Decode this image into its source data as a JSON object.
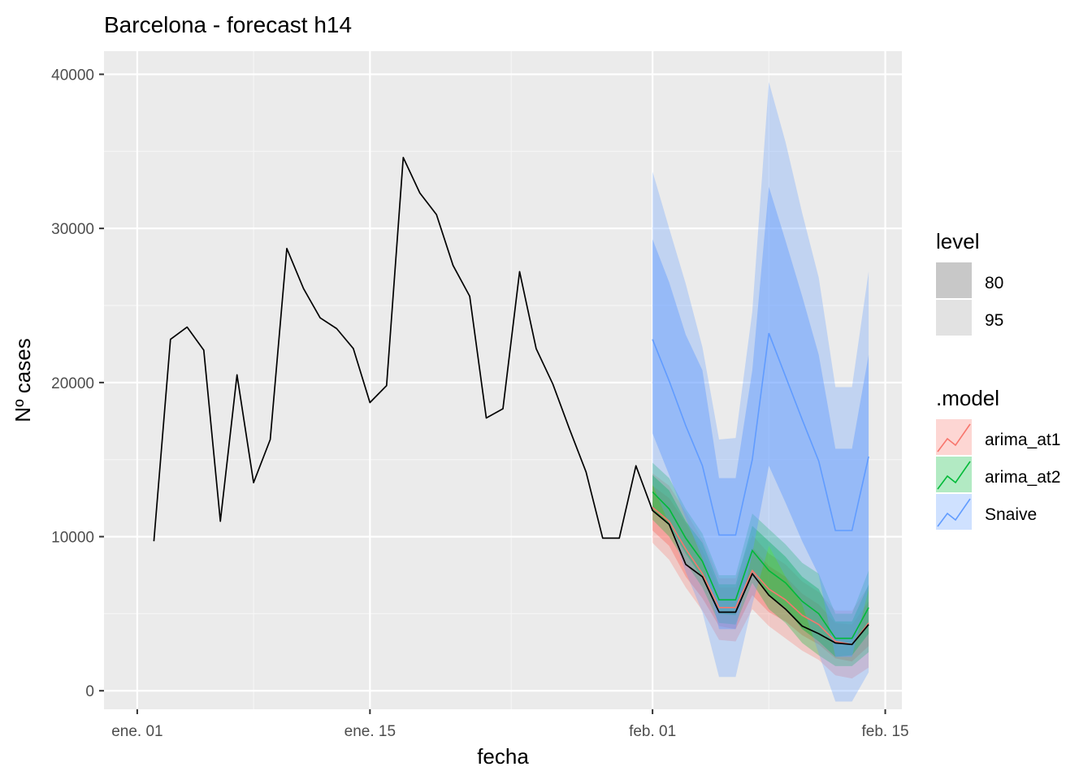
{
  "chart_data": {
    "type": "line",
    "title": "Barcelona - forecast h14",
    "xlabel": "fecha",
    "ylabel": "Nº cases",
    "xlim": [
      "2021-12-30",
      "2022-02-16"
    ],
    "ylim": [
      -1200,
      41500
    ],
    "x_ticks": [
      {
        "date": "2022-01-01",
        "label": "ene. 01"
      },
      {
        "date": "2022-01-15",
        "label": "ene. 15"
      },
      {
        "date": "2022-02-01",
        "label": "feb. 01"
      },
      {
        "date": "2022-02-15",
        "label": "feb. 15"
      }
    ],
    "y_ticks": [
      0,
      10000,
      20000,
      30000,
      40000
    ],
    "grid": true,
    "legend_position": "right",
    "actual": {
      "x": [
        "2022-01-02",
        "2022-01-03",
        "2022-01-04",
        "2022-01-05",
        "2022-01-06",
        "2022-01-07",
        "2022-01-08",
        "2022-01-09",
        "2022-01-10",
        "2022-01-11",
        "2022-01-12",
        "2022-01-13",
        "2022-01-14",
        "2022-01-15",
        "2022-01-16",
        "2022-01-17",
        "2022-01-18",
        "2022-01-19",
        "2022-01-20",
        "2022-01-21",
        "2022-01-22",
        "2022-01-23",
        "2022-01-24",
        "2022-01-25",
        "2022-01-26",
        "2022-01-27",
        "2022-01-28",
        "2022-01-29",
        "2022-01-30",
        "2022-01-31",
        "2022-02-01",
        "2022-02-02",
        "2022-02-03",
        "2022-02-04",
        "2022-02-05",
        "2022-02-06",
        "2022-02-07",
        "2022-02-08",
        "2022-02-09",
        "2022-02-10",
        "2022-02-11",
        "2022-02-12",
        "2022-02-13",
        "2022-02-14"
      ],
      "values": [
        9700,
        22800,
        23600,
        22100,
        11000,
        20500,
        13500,
        16300,
        28700,
        26100,
        24200,
        23500,
        22200,
        18700,
        19800,
        34600,
        32300,
        30900,
        27600,
        25600,
        17700,
        18300,
        27200,
        22200,
        19900,
        17000,
        14200,
        9900,
        9900,
        14600,
        11700,
        10800,
        8200,
        7400,
        5100,
        5100,
        7600,
        6200,
        5300,
        4200,
        3700,
        3100,
        3000,
        4300
      ]
    },
    "forecast_x": [
      "2022-02-01",
      "2022-02-02",
      "2022-02-03",
      "2022-02-04",
      "2022-02-05",
      "2022-02-06",
      "2022-02-07",
      "2022-02-08",
      "2022-02-09",
      "2022-02-10",
      "2022-02-11",
      "2022-02-12",
      "2022-02-13",
      "2022-02-14"
    ],
    "series": [
      {
        "name": "arima_at1",
        "color": "#F8766D",
        "mean": [
          11900,
          11000,
          9200,
          7600,
          5400,
          5400,
          7800,
          6600,
          5900,
          4900,
          4300,
          3200,
          3000,
          4400
        ],
        "lo80": [
          10400,
          9400,
          7400,
          6000,
          4200,
          4000,
          6200,
          5100,
          4500,
          3600,
          3000,
          2100,
          1900,
          2900
        ],
        "hi80": [
          13300,
          12500,
          10900,
          9100,
          6700,
          6700,
          9300,
          8100,
          7400,
          6300,
          5600,
          4400,
          4300,
          5800
        ],
        "lo95": [
          9600,
          8500,
          6700,
          5200,
          3300,
          3200,
          5300,
          4200,
          3400,
          2600,
          2000,
          1000,
          800,
          1500
        ],
        "hi95": [
          14100,
          13300,
          11600,
          9800,
          7300,
          7300,
          10100,
          8900,
          8200,
          7100,
          6400,
          5200,
          5200,
          6800
        ]
      },
      {
        "name": "arima_at2",
        "color": "#00BA38",
        "mean": [
          12900,
          11800,
          9900,
          8400,
          5900,
          5900,
          9100,
          7800,
          7000,
          5800,
          5000,
          3400,
          3400,
          5400
        ],
        "lo80": [
          11800,
          10700,
          8900,
          7300,
          5000,
          4900,
          7800,
          6200,
          5400,
          4000,
          3200,
          2200,
          2300,
          3700
        ],
        "hi80": [
          14000,
          13000,
          11000,
          9600,
          6900,
          6900,
          10700,
          9700,
          8700,
          7400,
          6600,
          4500,
          4500,
          6900
        ],
        "lo95": [
          11100,
          10000,
          8300,
          6700,
          4400,
          4300,
          7000,
          5300,
          4400,
          3100,
          2300,
          1600,
          1600,
          2500
        ],
        "hi95": [
          14800,
          13800,
          11800,
          10200,
          7500,
          7500,
          11500,
          10500,
          9500,
          8300,
          7600,
          5000,
          5000,
          7800
        ]
      },
      {
        "name": "Snaive",
        "color": "#619CFF",
        "mean": [
          22800,
          20100,
          17200,
          14600,
          10100,
          10100,
          15000,
          23200,
          20400,
          17600,
          14900,
          10400,
          10400,
          15200
        ],
        "lo80": [
          16700,
          14000,
          11200,
          8600,
          4000,
          4000,
          8900,
          14600,
          12200,
          9700,
          7500,
          2200,
          2200,
          6600
        ],
        "hi80": [
          29300,
          26500,
          23100,
          20800,
          13800,
          13800,
          20800,
          32700,
          29200,
          25600,
          21800,
          15700,
          15700,
          21800
        ],
        "lo95": [
          13400,
          10800,
          7700,
          5100,
          900,
          900,
          5600,
          9400,
          7400,
          5600,
          2400,
          -700,
          -700,
          1200
        ],
        "hi95": [
          33700,
          30000,
          26400,
          22300,
          16300,
          16400,
          24600,
          39500,
          35600,
          31000,
          26800,
          19700,
          19700,
          27200
        ]
      }
    ]
  },
  "legend": {
    "level": {
      "title": "level",
      "items": [
        {
          "label": "80",
          "color": "#c8c8c8"
        },
        {
          "label": "95",
          "color": "#e2e2e2"
        }
      ]
    },
    "model": {
      "title": ".model",
      "items": [
        {
          "label": "arima_at1",
          "color": "#F8766D"
        },
        {
          "label": "arima_at2",
          "color": "#00BA38"
        },
        {
          "label": "Snaive",
          "color": "#619CFF"
        }
      ]
    }
  }
}
